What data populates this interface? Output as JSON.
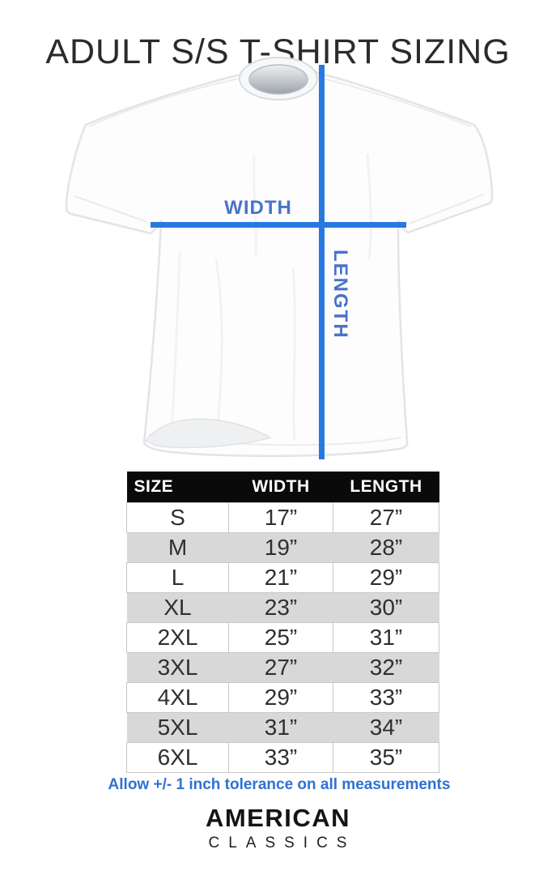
{
  "title": "ADULT S/S T-SHIRT SIZING",
  "diagram": {
    "width_label": "WIDTH",
    "length_label": "LENGTH",
    "line_color": "#2779e0",
    "label_color": "#4a73c8"
  },
  "table": {
    "headers": [
      "SIZE",
      "WIDTH",
      "LENGTH"
    ],
    "rows": [
      {
        "size": "S",
        "width": "17”",
        "length": "27”"
      },
      {
        "size": "M",
        "width": "19”",
        "length": "28”"
      },
      {
        "size": "L",
        "width": "21”",
        "length": "29”"
      },
      {
        "size": "XL",
        "width": "23”",
        "length": "30”"
      },
      {
        "size": "2XL",
        "width": "25”",
        "length": "31”"
      },
      {
        "size": "3XL",
        "width": "27”",
        "length": "32”"
      },
      {
        "size": "4XL",
        "width": "29”",
        "length": "33”"
      },
      {
        "size": "5XL",
        "width": "31”",
        "length": "34”"
      },
      {
        "size": "6XL",
        "width": "33”",
        "length": "35”"
      }
    ]
  },
  "note": {
    "text": "Allow +/- 1 inch tolerance on all measurements",
    "color": "#2e72d2"
  },
  "brand": {
    "line1": "AMERICAN",
    "line2": "CLASSICS"
  }
}
